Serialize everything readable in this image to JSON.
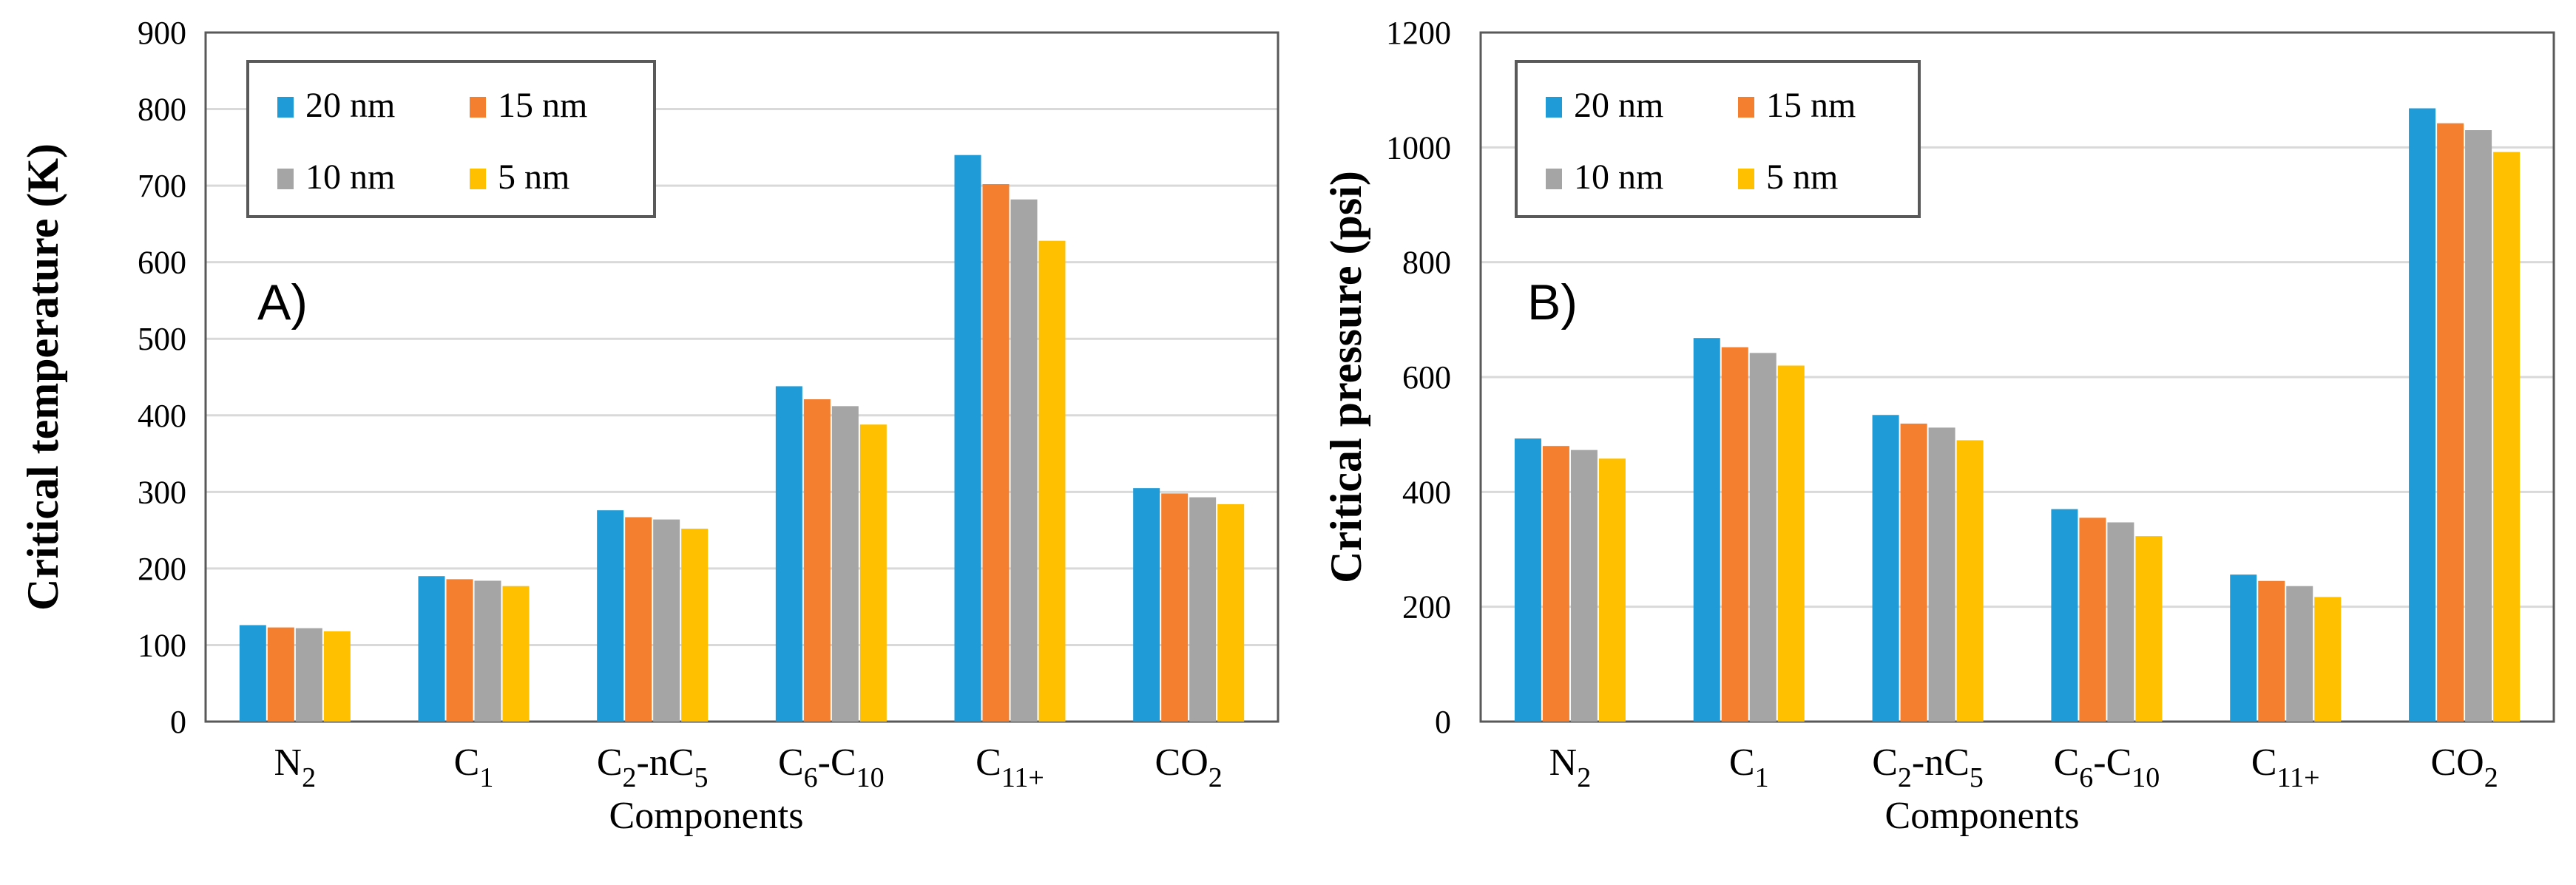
{
  "colors": {
    "s20": "#1f9bd7",
    "s15": "#f47f2e",
    "s10": "#a5a5a5",
    "s5": "#ffc000",
    "grid": "#d9d9d9",
    "frame": "#595959"
  },
  "chart_data": [
    {
      "type": "bar",
      "panel": "A)",
      "ylabel": "Critical temperature  (K)",
      "xlabel": "Components",
      "ylim": [
        0,
        900
      ],
      "yticks": [
        "0",
        "100",
        "200",
        "300",
        "400",
        "500",
        "600",
        "700",
        "800",
        "900"
      ],
      "grid": true,
      "legend": "top-left",
      "categories": [
        {
          "base": "N",
          "sub": "2",
          "mid": "",
          "sub2": ""
        },
        {
          "base": "C",
          "sub": "1",
          "mid": "",
          "sub2": ""
        },
        {
          "base": "C",
          "sub": "2",
          "mid": "-nC",
          "sub2": "5"
        },
        {
          "base": "C",
          "sub": "6",
          "mid": "-C",
          "sub2": "10"
        },
        {
          "base": "C",
          "sub": "11+",
          "mid": "",
          "sub2": ""
        },
        {
          "base": "CO",
          "sub": "2",
          "mid": "",
          "sub2": ""
        }
      ],
      "series": [
        {
          "name": "20 nm",
          "color_key": "s20",
          "values": [
            126,
            190,
            276,
            438,
            740,
            305
          ]
        },
        {
          "name": "15 nm",
          "color_key": "s15",
          "values": [
            123,
            186,
            267,
            421,
            702,
            298
          ]
        },
        {
          "name": "10 nm",
          "color_key": "s10",
          "values": [
            122,
            184,
            264,
            412,
            682,
            293
          ]
        },
        {
          "name": "5 nm",
          "color_key": "s5",
          "values": [
            118,
            177,
            252,
            388,
            628,
            284
          ]
        }
      ]
    },
    {
      "type": "bar",
      "panel": "B)",
      "ylabel": "Critical pressure  (psi)",
      "xlabel": "Components",
      "ylim": [
        0,
        1200
      ],
      "yticks": [
        "0",
        "200",
        "400",
        "600",
        "800",
        "1000",
        "1200"
      ],
      "grid": true,
      "legend": "top-left",
      "categories": [
        {
          "base": "N",
          "sub": "2",
          "mid": "",
          "sub2": ""
        },
        {
          "base": "C",
          "sub": "1",
          "mid": "",
          "sub2": ""
        },
        {
          "base": "C",
          "sub": "2",
          "mid": "-nC",
          "sub2": "5"
        },
        {
          "base": "C",
          "sub": "6",
          "mid": "-C",
          "sub2": "10"
        },
        {
          "base": "C",
          "sub": "11+",
          "mid": "",
          "sub2": ""
        },
        {
          "base": "CO",
          "sub": "2",
          "mid": "",
          "sub2": ""
        }
      ],
      "series": [
        {
          "name": "20 nm",
          "color_key": "s20",
          "values": [
            493,
            668,
            534,
            370,
            256,
            1068
          ]
        },
        {
          "name": "15 nm",
          "color_key": "s15",
          "values": [
            480,
            652,
            519,
            355,
            245,
            1042
          ]
        },
        {
          "name": "10 nm",
          "color_key": "s10",
          "values": [
            473,
            642,
            512,
            347,
            236,
            1030
          ]
        },
        {
          "name": "5 nm",
          "color_key": "s5",
          "values": [
            458,
            620,
            490,
            323,
            217,
            992
          ]
        }
      ]
    }
  ]
}
